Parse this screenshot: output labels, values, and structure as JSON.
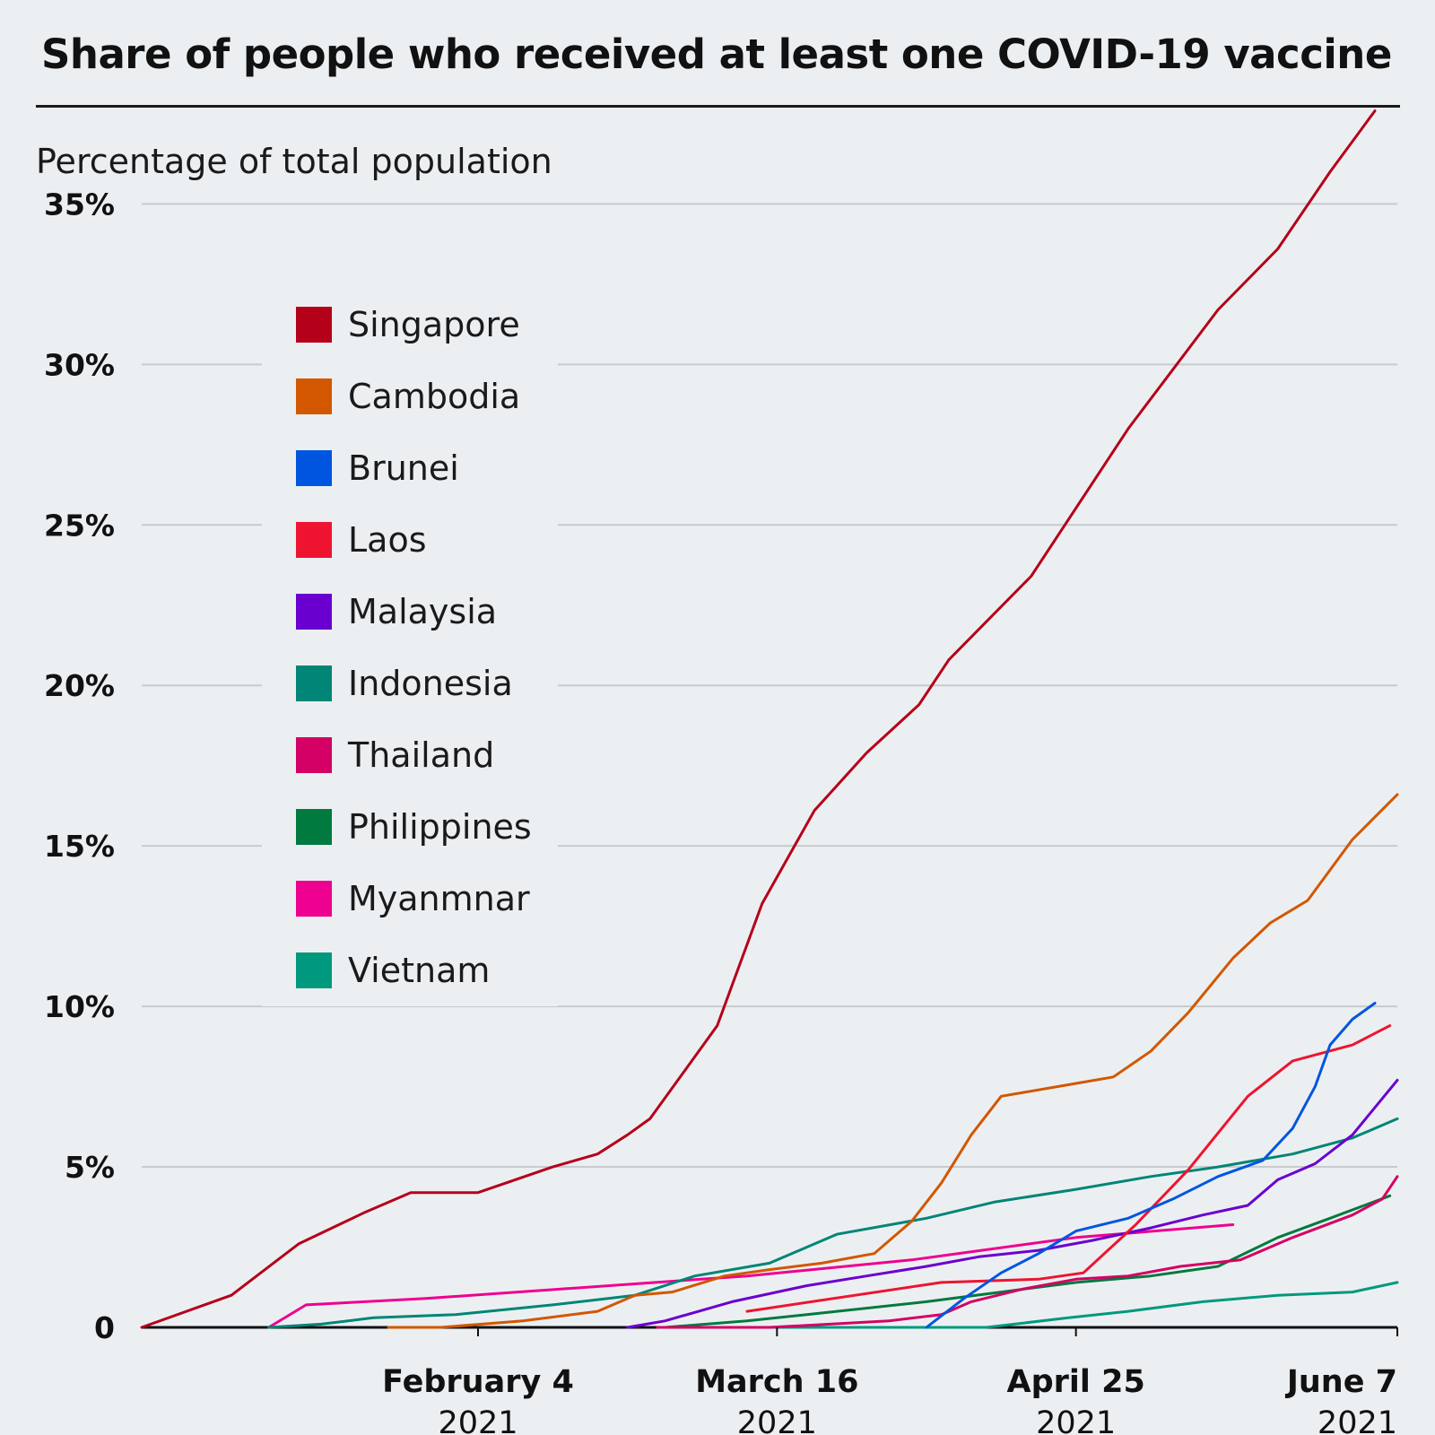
{
  "title": "Share of people who received at least one COVID-19 vaccine",
  "chart_data": {
    "type": "line",
    "title": "Share of people who received at least one COVID-19 vaccine",
    "ylabel": "Percentage of total population",
    "ylim": [
      0,
      38
    ],
    "y_ticks": [
      "0",
      "5%",
      "10%",
      "15%",
      "20%",
      "25%",
      "30%",
      "35%"
    ],
    "y_tick_values": [
      0,
      5,
      10,
      15,
      20,
      25,
      30,
      35
    ],
    "xlim": [
      "2020-12-21",
      "2021-06-07"
    ],
    "x_ticks": [
      {
        "date": "2021-02-04",
        "label": "February 4",
        "sub": "2021"
      },
      {
        "date": "2021-03-16",
        "label": "March 16",
        "sub": "2021"
      },
      {
        "date": "2021-04-25",
        "label": "April 25",
        "sub": "2021"
      },
      {
        "date": "2021-06-07",
        "label": "June 7",
        "sub": "2021"
      }
    ],
    "grid": "horizontal",
    "legend_position": "upper-left",
    "series": [
      {
        "name": "Singapore",
        "color": "#b5001a",
        "x": [
          "2020-12-21",
          "2021-01-02",
          "2021-01-11",
          "2021-01-20",
          "2021-01-26",
          "2021-02-04",
          "2021-02-14",
          "2021-02-20",
          "2021-02-24",
          "2021-02-27",
          "2021-03-08",
          "2021-03-14",
          "2021-03-21",
          "2021-03-28",
          "2021-04-04",
          "2021-04-08",
          "2021-04-19",
          "2021-05-02",
          "2021-05-14",
          "2021-05-22",
          "2021-05-29",
          "2021-06-04"
        ],
        "y": [
          0,
          1.0,
          2.6,
          3.6,
          4.2,
          4.2,
          5.0,
          5.4,
          6.0,
          6.5,
          9.4,
          13.2,
          16.1,
          17.9,
          19.4,
          20.8,
          23.4,
          28.0,
          31.7,
          33.6,
          36.0,
          37.9
        ]
      },
      {
        "name": "Cambodia",
        "color": "#d25700",
        "x": [
          "2021-01-23",
          "2021-01-30",
          "2021-02-10",
          "2021-02-20",
          "2021-02-25",
          "2021-03-02",
          "2021-03-09",
          "2021-03-15",
          "2021-03-22",
          "2021-03-29",
          "2021-04-03",
          "2021-04-07",
          "2021-04-11",
          "2021-04-15",
          "2021-04-25",
          "2021-04-30",
          "2021-05-05",
          "2021-05-10",
          "2021-05-16",
          "2021-05-21",
          "2021-05-26",
          "2021-06-01",
          "2021-06-07"
        ],
        "y": [
          0,
          0,
          0.2,
          0.5,
          1.0,
          1.1,
          1.6,
          1.8,
          2.0,
          2.3,
          3.3,
          4.5,
          6.0,
          7.2,
          7.6,
          7.8,
          8.6,
          9.8,
          11.5,
          12.6,
          13.3,
          15.2,
          16.6
        ]
      },
      {
        "name": "Brunei",
        "color": "#0055e0",
        "x": [
          "2021-04-05",
          "2021-04-10",
          "2021-04-15",
          "2021-04-20",
          "2021-04-25",
          "2021-05-02",
          "2021-05-08",
          "2021-05-14",
          "2021-05-20",
          "2021-05-24",
          "2021-05-27",
          "2021-05-29",
          "2021-06-01",
          "2021-06-04"
        ],
        "y": [
          0,
          0.9,
          1.7,
          2.3,
          3.0,
          3.4,
          4.0,
          4.7,
          5.2,
          6.2,
          7.5,
          8.8,
          9.6,
          10.1
        ]
      },
      {
        "name": "Laos",
        "color": "#ee1430",
        "x": [
          "2021-03-12",
          "2021-04-07",
          "2021-04-20",
          "2021-04-26",
          "2021-05-03",
          "2021-05-10",
          "2021-05-18",
          "2021-05-24",
          "2021-06-01",
          "2021-06-06"
        ],
        "y": [
          0.5,
          1.4,
          1.5,
          1.7,
          3.2,
          4.9,
          7.2,
          8.3,
          8.8,
          9.4
        ]
      },
      {
        "name": "Malaysia",
        "color": "#6a00d0",
        "x": [
          "2021-02-24",
          "2021-03-01",
          "2021-03-10",
          "2021-03-20",
          "2021-03-28",
          "2021-04-05",
          "2021-04-12",
          "2021-04-20",
          "2021-04-27",
          "2021-05-05",
          "2021-05-12",
          "2021-05-18",
          "2021-05-22",
          "2021-05-27",
          "2021-06-01",
          "2021-06-07"
        ],
        "y": [
          0,
          0.2,
          0.8,
          1.3,
          1.6,
          1.9,
          2.2,
          2.4,
          2.7,
          3.1,
          3.5,
          3.8,
          4.6,
          5.1,
          6.0,
          7.7
        ]
      },
      {
        "name": "Indonesia",
        "color": "#008577",
        "x": [
          "2021-01-07",
          "2021-01-14",
          "2021-01-21",
          "2021-02-01",
          "2021-02-14",
          "2021-02-25",
          "2021-03-05",
          "2021-03-15",
          "2021-03-24",
          "2021-04-05",
          "2021-04-14",
          "2021-04-25",
          "2021-05-05",
          "2021-05-14",
          "2021-05-24",
          "2021-06-01",
          "2021-06-07"
        ],
        "y": [
          0,
          0.1,
          0.3,
          0.4,
          0.7,
          1.0,
          1.6,
          2.0,
          2.9,
          3.4,
          3.9,
          4.3,
          4.7,
          5.0,
          5.4,
          5.9,
          6.5
        ]
      },
      {
        "name": "Thailand",
        "color": "#d40065",
        "x": [
          "2021-02-28",
          "2021-03-15",
          "2021-03-31",
          "2021-04-07",
          "2021-04-11",
          "2021-04-18",
          "2021-04-25",
          "2021-05-02",
          "2021-05-09",
          "2021-05-17",
          "2021-05-24",
          "2021-06-01",
          "2021-06-05",
          "2021-06-07"
        ],
        "y": [
          0,
          0,
          0.2,
          0.4,
          0.8,
          1.2,
          1.5,
          1.6,
          1.9,
          2.1,
          2.8,
          3.5,
          4.0,
          4.7
        ]
      },
      {
        "name": "Philippines",
        "color": "#007a3e",
        "x": [
          "2021-03-01",
          "2021-03-12",
          "2021-03-20",
          "2021-04-05",
          "2021-04-15",
          "2021-04-25",
          "2021-05-05",
          "2021-05-14",
          "2021-05-22",
          "2021-05-29",
          "2021-06-06"
        ],
        "y": [
          0,
          0.2,
          0.4,
          0.8,
          1.1,
          1.4,
          1.6,
          1.9,
          2.8,
          3.4,
          4.1
        ]
      },
      {
        "name": "Myanmnar",
        "color": "#ee0090",
        "x": [
          "2021-01-07",
          "2021-01-12",
          "2021-01-28",
          "2021-03-12",
          "2021-04-03",
          "2021-04-25",
          "2021-05-16"
        ],
        "y": [
          0,
          0.7,
          0.9,
          1.6,
          2.1,
          2.8,
          3.2
        ]
      },
      {
        "name": "Vietnam",
        "color": "#00997e",
        "x": [
          "2021-03-05",
          "2021-04-13",
          "2021-04-24",
          "2021-05-02",
          "2021-05-12",
          "2021-05-22",
          "2021-06-01",
          "2021-06-07"
        ],
        "y": [
          0,
          0,
          0.3,
          0.5,
          0.8,
          1.0,
          1.1,
          1.4
        ]
      }
    ]
  }
}
